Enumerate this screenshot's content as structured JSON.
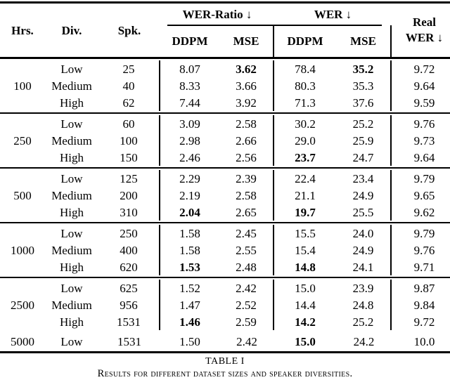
{
  "colors": {
    "text": "#000000",
    "background": "#ffffff",
    "rule": "#000000"
  },
  "caption": {
    "label": "TABLE I",
    "text": "Results for different dataset sizes and speaker diversities."
  },
  "table": {
    "header": {
      "hrs": "Hrs.",
      "div": "Div.",
      "spk": "Spk.",
      "wer_ratio": "WER-Ratio ↓",
      "wer": "WER ↓",
      "real_line1": "Real",
      "real_line2": "WER ↓",
      "ddpm": "DDPM",
      "mse": "MSE"
    },
    "groups": [
      {
        "hrs": "100",
        "rule_before": false,
        "bars": true,
        "rows": [
          {
            "div": "Low",
            "spk": "25",
            "vals": [
              {
                "v": "8.07"
              },
              {
                "v": "3.62",
                "b": true
              },
              {
                "v": "78.4"
              },
              {
                "v": "35.2",
                "b": true
              },
              {
                "v": "9.72"
              }
            ]
          },
          {
            "div": "Medium",
            "spk": "40",
            "vals": [
              {
                "v": "8.33"
              },
              {
                "v": "3.66"
              },
              {
                "v": "80.3"
              },
              {
                "v": "35.3"
              },
              {
                "v": "9.64"
              }
            ]
          },
          {
            "div": "High",
            "spk": "62",
            "vals": [
              {
                "v": "7.44"
              },
              {
                "v": "3.92"
              },
              {
                "v": "71.3"
              },
              {
                "v": "37.6"
              },
              {
                "v": "9.59"
              }
            ]
          }
        ]
      },
      {
        "hrs": "250",
        "rule_before": true,
        "bars": true,
        "rows": [
          {
            "div": "Low",
            "spk": "60",
            "vals": [
              {
                "v": "3.09"
              },
              {
                "v": "2.58"
              },
              {
                "v": "30.2"
              },
              {
                "v": "25.2"
              },
              {
                "v": "9.76"
              }
            ]
          },
          {
            "div": "Medium",
            "spk": "100",
            "vals": [
              {
                "v": "2.98"
              },
              {
                "v": "2.66"
              },
              {
                "v": "29.0"
              },
              {
                "v": "25.9"
              },
              {
                "v": "9.73"
              }
            ]
          },
          {
            "div": "High",
            "spk": "150",
            "vals": [
              {
                "v": "2.46"
              },
              {
                "v": "2.56"
              },
              {
                "v": "23.7",
                "b": true
              },
              {
                "v": "24.7"
              },
              {
                "v": "9.64"
              }
            ]
          }
        ]
      },
      {
        "hrs": "500",
        "rule_before": true,
        "bars": true,
        "rows": [
          {
            "div": "Low",
            "spk": "125",
            "vals": [
              {
                "v": "2.29"
              },
              {
                "v": "2.39"
              },
              {
                "v": "22.4"
              },
              {
                "v": "23.4"
              },
              {
                "v": "9.79"
              }
            ]
          },
          {
            "div": "Medium",
            "spk": "200",
            "vals": [
              {
                "v": "2.19"
              },
              {
                "v": "2.58"
              },
              {
                "v": "21.1"
              },
              {
                "v": "24.9"
              },
              {
                "v": "9.65"
              }
            ]
          },
          {
            "div": "High",
            "spk": "310",
            "vals": [
              {
                "v": "2.04",
                "b": true
              },
              {
                "v": "2.65"
              },
              {
                "v": "19.7",
                "b": true
              },
              {
                "v": "25.5"
              },
              {
                "v": "9.62"
              }
            ]
          }
        ]
      },
      {
        "hrs": "1000",
        "rule_before": true,
        "bars": true,
        "rows": [
          {
            "div": "Low",
            "spk": "250",
            "vals": [
              {
                "v": "1.58"
              },
              {
                "v": "2.45"
              },
              {
                "v": "15.5"
              },
              {
                "v": "24.0"
              },
              {
                "v": "9.79"
              }
            ]
          },
          {
            "div": "Medium",
            "spk": "400",
            "vals": [
              {
                "v": "1.58"
              },
              {
                "v": "2.55"
              },
              {
                "v": "15.4"
              },
              {
                "v": "24.9"
              },
              {
                "v": "9.76"
              }
            ]
          },
          {
            "div": "High",
            "spk": "620",
            "vals": [
              {
                "v": "1.53",
                "b": true
              },
              {
                "v": "2.48"
              },
              {
                "v": "14.8",
                "b": true
              },
              {
                "v": "24.1"
              },
              {
                "v": "9.71"
              }
            ]
          }
        ]
      },
      {
        "hrs": "2500",
        "rule_before": true,
        "bars": true,
        "rows": [
          {
            "div": "Low",
            "spk": "625",
            "vals": [
              {
                "v": "1.52"
              },
              {
                "v": "2.42"
              },
              {
                "v": "15.0"
              },
              {
                "v": "23.9"
              },
              {
                "v": "9.87"
              }
            ]
          },
          {
            "div": "Medium",
            "spk": "956",
            "vals": [
              {
                "v": "1.47"
              },
              {
                "v": "2.52"
              },
              {
                "v": "14.4"
              },
              {
                "v": "24.8"
              },
              {
                "v": "9.84"
              }
            ]
          },
          {
            "div": "High",
            "spk": "1531",
            "vals": [
              {
                "v": "1.46",
                "b": true
              },
              {
                "v": "2.59"
              },
              {
                "v": "14.2",
                "b": true
              },
              {
                "v": "25.2"
              },
              {
                "v": "9.72"
              }
            ]
          }
        ]
      },
      {
        "hrs": "5000",
        "rule_before": false,
        "bars": false,
        "rows": [
          {
            "div": "Low",
            "spk": "1531",
            "vals": [
              {
                "v": "1.50"
              },
              {
                "v": "2.42"
              },
              {
                "v": "15.0",
                "b": true
              },
              {
                "v": "24.2"
              },
              {
                "v": "10.0"
              }
            ]
          }
        ]
      }
    ]
  }
}
